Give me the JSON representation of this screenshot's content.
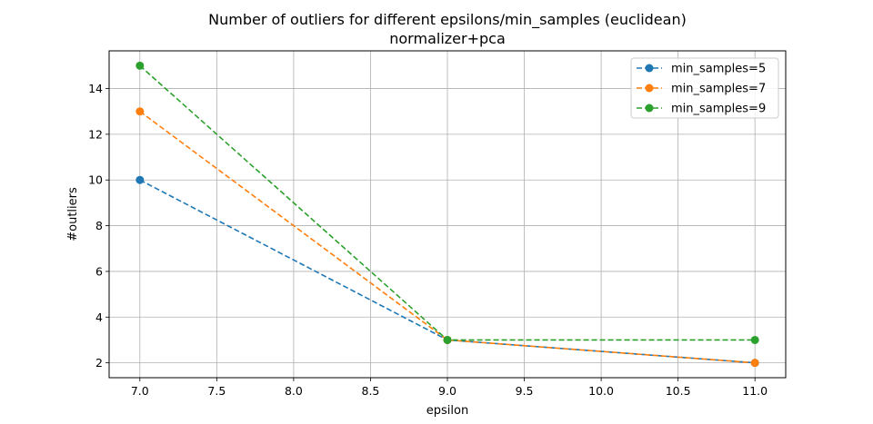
{
  "chart_data": {
    "type": "line",
    "title": "Number of outliers for different epsilons/min_samples (euclidean)",
    "subtitle": "normalizer+pca",
    "xlabel": "epsilon",
    "ylabel": "#outliers",
    "xlim": [
      6.8,
      11.2
    ],
    "ylim": [
      1.35,
      15.65
    ],
    "xticks": [
      7.0,
      7.5,
      8.0,
      8.5,
      9.0,
      9.5,
      10.0,
      10.5,
      11.0
    ],
    "xtick_labels": [
      "7.0",
      "7.5",
      "8.0",
      "8.5",
      "9.0",
      "9.5",
      "10.0",
      "10.5",
      "11.0"
    ],
    "yticks": [
      2,
      4,
      6,
      8,
      10,
      12,
      14
    ],
    "ytick_labels": [
      "2",
      "4",
      "6",
      "8",
      "10",
      "12",
      "14"
    ],
    "grid": true,
    "legend_position": "top-right",
    "x": [
      7.0,
      9.0,
      11.0
    ],
    "series": [
      {
        "name": "min_samples=5",
        "values": [
          10,
          3,
          2
        ],
        "color": "#1f77b4"
      },
      {
        "name": "min_samples=7",
        "values": [
          13,
          3,
          2
        ],
        "color": "#ff7f0e"
      },
      {
        "name": "min_samples=9",
        "values": [
          15,
          3,
          3
        ],
        "color": "#2ca02c"
      }
    ]
  }
}
